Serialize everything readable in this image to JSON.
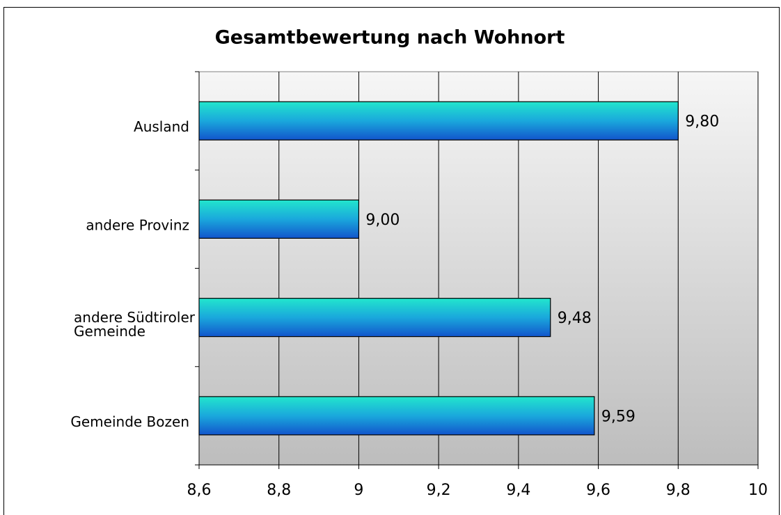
{
  "chart_data": {
    "type": "bar",
    "orientation": "horizontal",
    "title": "Gesamtbewertung nach Wohnort",
    "categories": [
      "Ausland",
      "andere Provinz",
      "andere Südtiroler Gemeinde",
      "Gemeinde Bozen"
    ],
    "values": [
      9.8,
      9.0,
      9.48,
      9.59
    ],
    "value_labels": [
      "9,80",
      "9,00",
      "9,48",
      "9,59"
    ],
    "xlim": [
      8.6,
      10
    ],
    "xticks": [
      {
        "value": 8.6,
        "label": "8,6"
      },
      {
        "value": 8.8,
        "label": "8,8"
      },
      9,
      {
        "value": 9.2,
        "label": "9,2"
      },
      {
        "value": 9.4,
        "label": "9,4"
      },
      {
        "value": 9.6,
        "label": "9,6"
      },
      {
        "value": 9.8,
        "label": "9,8"
      },
      10
    ],
    "grid": true
  }
}
